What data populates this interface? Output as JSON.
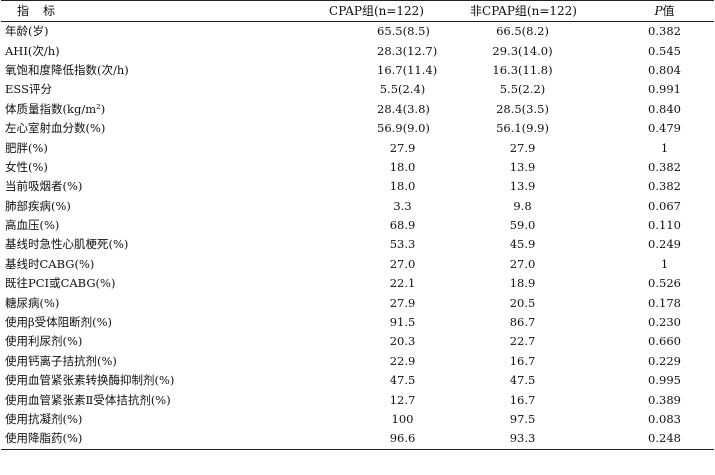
{
  "table": {
    "headers": {
      "name": "指标",
      "cpap": "CPAP组(n=122)",
      "noncpap": "非CPAP组(n=122)",
      "p_symbol": "P",
      "p_suffix": "值"
    },
    "rows": [
      {
        "name": "年龄(岁)",
        "cpap": "65.5(8.5)",
        "noncpap": "66.5(8.2)",
        "p": "0.382"
      },
      {
        "name": "AHI(次/h)",
        "cpap": "28.3(12.7)",
        "noncpap": "29.3(14.0)",
        "p": "0.545"
      },
      {
        "name": "氧饱和度降低指数(次/h)",
        "cpap": "16.7(11.4)",
        "noncpap": "16.3(11.8)",
        "p": "0.804"
      },
      {
        "name": "ESS评分",
        "cpap": "5.5(2.4)",
        "noncpap": "5.5(2.2)",
        "p": "0.991"
      },
      {
        "name": "体质量指数(kg/m²)",
        "cpap": "28.4(3.8)",
        "noncpap": "28.5(3.5)",
        "p": "0.840"
      },
      {
        "name": "左心室射血分数(%)",
        "cpap": "56.9(9.0)",
        "noncpap": "56.1(9.9)",
        "p": "0.479"
      },
      {
        "name": "肥胖(%)",
        "cpap": "27.9",
        "noncpap": "27.9",
        "p": "1"
      },
      {
        "name": "女性(%)",
        "cpap": "18.0",
        "noncpap": "13.9",
        "p": "0.382"
      },
      {
        "name": "当前吸烟者(%)",
        "cpap": "18.0",
        "noncpap": "13.9",
        "p": "0.382"
      },
      {
        "name": "肺部疾病(%)",
        "cpap": "3.3",
        "noncpap": "9.8",
        "p": "0.067"
      },
      {
        "name": "高血压(%)",
        "cpap": "68.9",
        "noncpap": "59.0",
        "p": "0.110"
      },
      {
        "name": "基线时急性心肌梗死(%)",
        "cpap": "53.3",
        "noncpap": "45.9",
        "p": "0.249"
      },
      {
        "name": "基线时CABG(%)",
        "cpap": "27.0",
        "noncpap": "27.0",
        "p": "1"
      },
      {
        "name": "既往PCI或CABG(%)",
        "cpap": "22.1",
        "noncpap": "18.9",
        "p": "0.526"
      },
      {
        "name": "糖尿病(%)",
        "cpap": "27.9",
        "noncpap": "20.5",
        "p": "0.178"
      },
      {
        "name": "使用β受体阻断剂(%)",
        "cpap": "91.5",
        "noncpap": "86.7",
        "p": "0.230"
      },
      {
        "name": "使用利尿剂(%)",
        "cpap": "20.3",
        "noncpap": "22.7",
        "p": "0.660"
      },
      {
        "name": "使用钙离子拮抗剂(%)",
        "cpap": "22.9",
        "noncpap": "16.7",
        "p": "0.229"
      },
      {
        "name": "使用血管紧张素转换酶抑制剂(%)",
        "cpap": "47.5",
        "noncpap": "47.5",
        "p": "0.995"
      },
      {
        "name": "使用血管紧张素Ⅱ受体拮抗剂(%)",
        "cpap": "12.7",
        "noncpap": "16.7",
        "p": "0.389"
      },
      {
        "name": "使用抗凝剂(%)",
        "cpap": "100",
        "noncpap": "97.5",
        "p": "0.083"
      },
      {
        "name": "使用降脂药(%)",
        "cpap": "96.6",
        "noncpap": "93.3",
        "p": "0.248"
      }
    ]
  }
}
